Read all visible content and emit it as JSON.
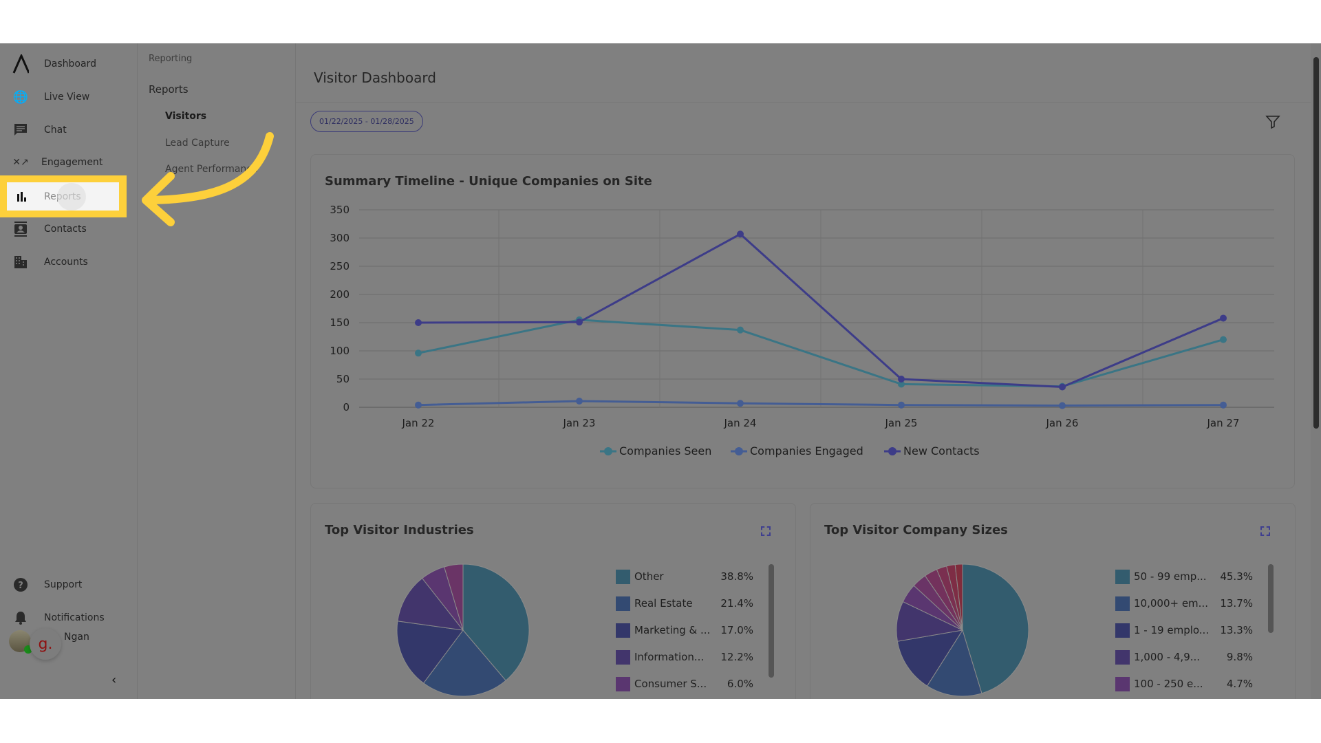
{
  "sidebar": {
    "items": [
      {
        "label": "Dashboard",
        "icon": "logo-icon"
      },
      {
        "label": "Live View",
        "icon": "globe-search-icon"
      },
      {
        "label": "Chat",
        "icon": "chat-icon"
      },
      {
        "label": "Engagement",
        "icon": "engagement-icon"
      },
      {
        "label": "Reports",
        "icon": "bar-chart-icon",
        "active": true
      },
      {
        "label": "Contacts",
        "icon": "contacts-icon"
      },
      {
        "label": "Accounts",
        "icon": "building-icon"
      }
    ],
    "bottom": [
      {
        "label": "Support",
        "icon": "help-icon"
      },
      {
        "label": "Notifications",
        "icon": "bell-icon"
      }
    ],
    "user": {
      "name": "Ngan",
      "badge": "g."
    }
  },
  "subnav": {
    "section": "Reporting",
    "group": "Reports",
    "items": [
      "Visitors",
      "Lead Capture",
      "Agent Performance"
    ],
    "active": "Visitors"
  },
  "main": {
    "title": "Visitor Dashboard",
    "date_range": "01/22/2025 - 01/28/2025"
  },
  "colors": {
    "seen": "#3a7585",
    "engaged": "#445d94",
    "contacts": "#3d3c88",
    "highlight": "#fdd03b"
  },
  "chart_data": [
    {
      "type": "line",
      "title": "Summary Timeline - Unique Companies on Site",
      "categories": [
        "Jan 22",
        "Jan 23",
        "Jan 24",
        "Jan 25",
        "Jan 26",
        "Jan 27"
      ],
      "ylim": [
        0,
        350
      ],
      "yticks": [
        0,
        50,
        100,
        150,
        200,
        250,
        300,
        350
      ],
      "grid": true,
      "legend": "bottom",
      "series": [
        {
          "name": "Companies Seen",
          "values": [
            96,
            155,
            137,
            41,
            37,
            120
          ]
        },
        {
          "name": "Companies Engaged",
          "values": [
            4,
            11,
            7,
            4,
            3,
            4
          ]
        },
        {
          "name": "New Contacts",
          "values": [
            150,
            151,
            307,
            50,
            36,
            158
          ]
        }
      ]
    },
    {
      "type": "pie",
      "title": "Top Visitor Industries",
      "labels": [
        "Other",
        "Real Estate",
        "Marketing & ...",
        "Information...",
        "Consumer S..."
      ],
      "values": [
        38.8,
        21.4,
        17.0,
        12.2,
        6.0
      ],
      "pct_labels": [
        "38.8%",
        "21.4%",
        "17.0%",
        "12.2%",
        "6.0%"
      ],
      "unlabeled_values": [
        4.6
      ],
      "colors": [
        "#335c6e",
        "#334a72",
        "#33376a",
        "#42356c",
        "#5a3670",
        "#6a3466"
      ]
    },
    {
      "type": "pie",
      "title": "Top Visitor Company Sizes",
      "labels": [
        "50 - 99 emp...",
        "10,000+ em...",
        "1 - 19 emplo...",
        "1,000 - 4,9...",
        "100 - 250 e..."
      ],
      "values": [
        45.3,
        13.7,
        13.3,
        9.8,
        4.7
      ],
      "pct_labels": [
        "45.3%",
        "13.7%",
        "13.3%",
        "9.8%",
        "4.7%"
      ],
      "unlabeled_values": [
        3.6,
        3.2,
        2.5,
        2.1,
        1.8
      ],
      "colors": [
        "#335c6e",
        "#334a72",
        "#33376a",
        "#42356c",
        "#5a3670",
        "#6a3466",
        "#73315c",
        "#7a2f50",
        "#7e2d45",
        "#802c3c"
      ]
    }
  ]
}
